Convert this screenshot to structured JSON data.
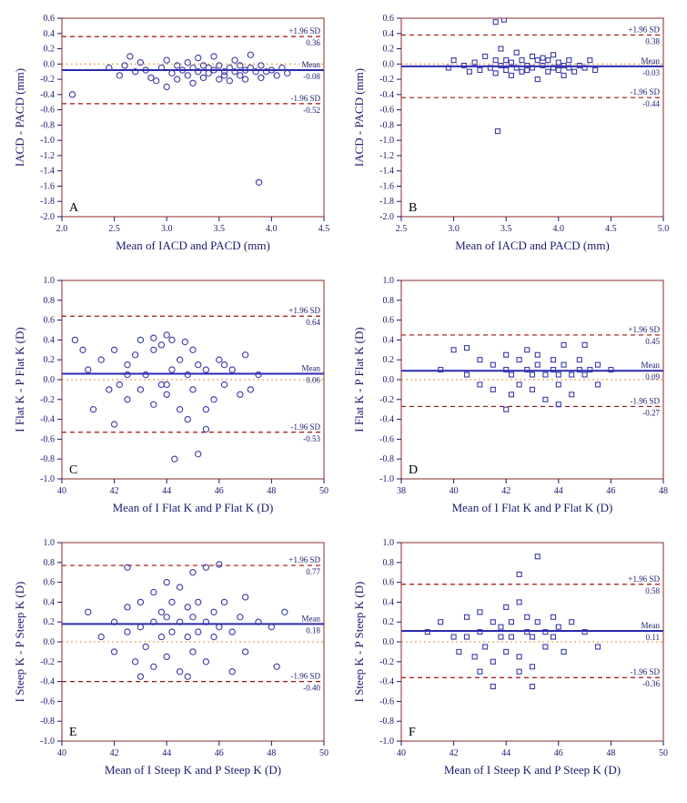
{
  "global": {
    "frame_border_color": "#8b2a2a",
    "frame_border_width": 1,
    "background_color": "#ffffff",
    "tick_color": "#1a1a6e",
    "axis_label_color": "#1a1a6e",
    "annotation_color": "#1a1a6e",
    "panel_label_color": "#000000",
    "panel_label_fontsize": 14,
    "axis_label_fontsize": 13,
    "tick_fontsize": 10,
    "annotation_fontsize": 9,
    "mean_line_color": "#2a2ab0",
    "mean_line_width": 2,
    "limit_line_color": "#a01010",
    "limit_line_width": 1.2,
    "limit_line_dash": "5,4",
    "zero_line_color": "#e09030",
    "zero_line_width": 1,
    "zero_line_dash": "2,3",
    "marker_stroke": "#3a3aa8",
    "marker_fill": "none",
    "marker_stroke_width": 1.1,
    "marker_size": 5
  },
  "panels": [
    {
      "id": "A",
      "type": "scatter",
      "marker": "circle",
      "xlabel": "Mean of IACD and PACD (mm)",
      "ylabel": "IACD - PACD (mm)",
      "xlim": [
        2.0,
        4.5
      ],
      "xtick_step": 0.5,
      "ylim": [
        -2.0,
        0.6
      ],
      "ytick_step": 0.2,
      "mean": -0.08,
      "upper": 0.36,
      "lower": -0.52,
      "data": [
        [
          2.45,
          -0.05
        ],
        [
          2.55,
          -0.15
        ],
        [
          2.6,
          -0.02
        ],
        [
          2.65,
          0.1
        ],
        [
          2.7,
          -0.1
        ],
        [
          2.75,
          0.02
        ],
        [
          2.8,
          -0.08
        ],
        [
          2.85,
          -0.18
        ],
        [
          2.9,
          -0.22
        ],
        [
          2.95,
          -0.05
        ],
        [
          3.0,
          0.05
        ],
        [
          3.0,
          -0.3
        ],
        [
          3.05,
          -0.12
        ],
        [
          3.1,
          -0.02
        ],
        [
          3.1,
          -0.2
        ],
        [
          3.15,
          -0.08
        ],
        [
          3.2,
          0.02
        ],
        [
          3.2,
          -0.15
        ],
        [
          3.25,
          -0.05
        ],
        [
          3.25,
          -0.25
        ],
        [
          3.3,
          -0.1
        ],
        [
          3.3,
          0.08
        ],
        [
          3.35,
          -0.02
        ],
        [
          3.35,
          -0.18
        ],
        [
          3.4,
          -0.05
        ],
        [
          3.4,
          -0.12
        ],
        [
          3.45,
          -0.08
        ],
        [
          3.45,
          0.1
        ],
        [
          3.5,
          -0.2
        ],
        [
          3.5,
          -0.02
        ],
        [
          3.55,
          -0.1
        ],
        [
          3.55,
          -0.15
        ],
        [
          3.6,
          -0.05
        ],
        [
          3.6,
          -0.22
        ],
        [
          3.65,
          -0.1
        ],
        [
          3.65,
          0.05
        ],
        [
          3.7,
          -0.15
        ],
        [
          3.7,
          -0.02
        ],
        [
          3.75,
          -0.08
        ],
        [
          3.75,
          -0.2
        ],
        [
          3.8,
          -0.05
        ],
        [
          3.8,
          0.12
        ],
        [
          3.85,
          -0.1
        ],
        [
          3.9,
          -0.02
        ],
        [
          3.9,
          -0.18
        ],
        [
          3.95,
          -0.1
        ],
        [
          4.0,
          -0.08
        ],
        [
          4.05,
          -0.15
        ],
        [
          4.1,
          -0.05
        ],
        [
          4.15,
          -0.12
        ],
        [
          2.1,
          -0.4
        ],
        [
          3.88,
          -1.55
        ]
      ]
    },
    {
      "id": "B",
      "type": "scatter",
      "marker": "square",
      "xlabel": "Mean of IACD and PACD (mm)",
      "ylabel": "IACD - PACD (mm)",
      "xlim": [
        2.5,
        5.0
      ],
      "xtick_step": 0.5,
      "ylim": [
        -2.0,
        0.6
      ],
      "ytick_step": 0.2,
      "mean": -0.03,
      "upper": 0.38,
      "lower": -0.44,
      "data": [
        [
          2.95,
          -0.05
        ],
        [
          3.0,
          0.05
        ],
        [
          3.1,
          -0.02
        ],
        [
          3.15,
          -0.1
        ],
        [
          3.2,
          0.02
        ],
        [
          3.25,
          -0.08
        ],
        [
          3.3,
          0.1
        ],
        [
          3.35,
          -0.05
        ],
        [
          3.4,
          0.05
        ],
        [
          3.4,
          -0.12
        ],
        [
          3.45,
          -0.02
        ],
        [
          3.45,
          0.2
        ],
        [
          3.5,
          -0.08
        ],
        [
          3.5,
          0.05
        ],
        [
          3.55,
          -0.15
        ],
        [
          3.55,
          0.02
        ],
        [
          3.6,
          -0.05
        ],
        [
          3.6,
          0.15
        ],
        [
          3.65,
          -0.1
        ],
        [
          3.65,
          0.05
        ],
        [
          3.7,
          -0.02
        ],
        [
          3.7,
          -0.08
        ],
        [
          3.75,
          0.1
        ],
        [
          3.75,
          -0.05
        ],
        [
          3.8,
          0.05
        ],
        [
          3.8,
          -0.2
        ],
        [
          3.85,
          -0.02
        ],
        [
          3.85,
          0.08
        ],
        [
          3.9,
          -0.1
        ],
        [
          3.9,
          0.05
        ],
        [
          3.95,
          -0.05
        ],
        [
          3.95,
          0.12
        ],
        [
          4.0,
          -0.08
        ],
        [
          4.0,
          0.02
        ],
        [
          4.05,
          -0.02
        ],
        [
          4.05,
          -0.15
        ],
        [
          4.1,
          0.05
        ],
        [
          4.1,
          -0.05
        ],
        [
          4.15,
          -0.1
        ],
        [
          4.2,
          -0.02
        ],
        [
          4.25,
          -0.05
        ],
        [
          4.3,
          0.05
        ],
        [
          4.35,
          -0.08
        ],
        [
          3.4,
          0.55
        ],
        [
          3.48,
          0.58
        ],
        [
          3.42,
          -0.88
        ]
      ]
    },
    {
      "id": "C",
      "type": "scatter",
      "marker": "circle",
      "xlabel": "Mean of I Flat K and P Flat K (D)",
      "ylabel": "I Flat K - P Flat K (D)",
      "xlim": [
        40,
        50
      ],
      "xtick_step": 2,
      "ylim": [
        -1.0,
        1.0
      ],
      "ytick_step": 0.2,
      "mean": 0.06,
      "upper": 0.64,
      "lower": -0.53,
      "data": [
        [
          40.5,
          0.4
        ],
        [
          40.8,
          0.3
        ],
        [
          41.0,
          0.1
        ],
        [
          41.2,
          -0.3
        ],
        [
          41.5,
          0.2
        ],
        [
          41.8,
          -0.1
        ],
        [
          42.0,
          0.3
        ],
        [
          42.2,
          -0.05
        ],
        [
          42.5,
          0.15
        ],
        [
          42.5,
          -0.2
        ],
        [
          42.8,
          0.25
        ],
        [
          43.0,
          -0.1
        ],
        [
          43.0,
          0.4
        ],
        [
          43.2,
          0.05
        ],
        [
          43.5,
          -0.25
        ],
        [
          43.5,
          0.3
        ],
        [
          43.8,
          -0.05
        ],
        [
          44.0,
          0.45
        ],
        [
          44.0,
          -0.15
        ],
        [
          44.2,
          0.1
        ],
        [
          44.2,
          0.4
        ],
        [
          44.5,
          -0.3
        ],
        [
          44.5,
          0.2
        ],
        [
          44.8,
          0.05
        ],
        [
          44.8,
          -0.4
        ],
        [
          45.0,
          0.3
        ],
        [
          45.0,
          -0.1
        ],
        [
          45.2,
          0.15
        ],
        [
          45.5,
          -0.5
        ],
        [
          45.5,
          0.1
        ],
        [
          45.8,
          -0.2
        ],
        [
          46.0,
          0.2
        ],
        [
          46.2,
          -0.05
        ],
        [
          46.5,
          0.1
        ],
        [
          46.8,
          -0.15
        ],
        [
          47.0,
          0.25
        ],
        [
          47.2,
          -0.1
        ],
        [
          47.5,
          0.05
        ],
        [
          44.3,
          -0.8
        ],
        [
          45.2,
          -0.75
        ],
        [
          43.5,
          0.42
        ],
        [
          44.7,
          0.38
        ],
        [
          42.0,
          -0.45
        ],
        [
          43.8,
          0.35
        ],
        [
          45.5,
          -0.3
        ],
        [
          46.2,
          0.15
        ],
        [
          42.5,
          0.05
        ],
        [
          44.0,
          -0.05
        ]
      ]
    },
    {
      "id": "D",
      "type": "scatter",
      "marker": "square",
      "xlabel": "Mean of I Flat K and P Flat K (D)",
      "ylabel": "I Flat K - P Flat K (D)",
      "xlim": [
        38,
        48
      ],
      "xtick_step": 2,
      "ylim": [
        -1.0,
        1.0
      ],
      "ytick_step": 0.2,
      "mean": 0.09,
      "upper": 0.45,
      "lower": -0.27,
      "data": [
        [
          39.5,
          0.1
        ],
        [
          40.0,
          0.3
        ],
        [
          40.5,
          0.05
        ],
        [
          41.0,
          0.2
        ],
        [
          41.0,
          -0.05
        ],
        [
          41.5,
          0.15
        ],
        [
          41.5,
          -0.1
        ],
        [
          42.0,
          0.1
        ],
        [
          42.0,
          0.25
        ],
        [
          42.2,
          0.05
        ],
        [
          42.2,
          -0.15
        ],
        [
          42.5,
          0.2
        ],
        [
          42.5,
          -0.05
        ],
        [
          42.8,
          0.1
        ],
        [
          42.8,
          0.3
        ],
        [
          43.0,
          0.05
        ],
        [
          43.0,
          -0.1
        ],
        [
          43.2,
          0.15
        ],
        [
          43.2,
          0.25
        ],
        [
          43.5,
          0.05
        ],
        [
          43.5,
          -0.2
        ],
        [
          43.8,
          0.1
        ],
        [
          43.8,
          0.2
        ],
        [
          44.0,
          0.05
        ],
        [
          44.0,
          -0.05
        ],
        [
          44.2,
          0.15
        ],
        [
          44.2,
          0.35
        ],
        [
          44.5,
          0.05
        ],
        [
          44.5,
          -0.15
        ],
        [
          44.8,
          0.1
        ],
        [
          44.8,
          0.2
        ],
        [
          45.0,
          0.05
        ],
        [
          45.0,
          0.35
        ],
        [
          45.2,
          0.1
        ],
        [
          45.5,
          0.15
        ],
        [
          45.5,
          -0.05
        ],
        [
          46.0,
          0.1
        ],
        [
          42.0,
          -0.3
        ],
        [
          44.0,
          -0.25
        ],
        [
          40.5,
          0.32
        ]
      ]
    },
    {
      "id": "E",
      "type": "scatter",
      "marker": "circle",
      "xlabel": "Mean of I Steep K and P Steep K (D)",
      "ylabel": "I Steep K - P Steep K (D)",
      "xlim": [
        40,
        50
      ],
      "xtick_step": 2,
      "ylim": [
        -1.0,
        1.0
      ],
      "ytick_step": 0.2,
      "mean": 0.18,
      "upper": 0.77,
      "lower": -0.4,
      "data": [
        [
          41.0,
          0.3
        ],
        [
          41.5,
          0.05
        ],
        [
          42.0,
          0.2
        ],
        [
          42.0,
          -0.1
        ],
        [
          42.5,
          0.35
        ],
        [
          42.5,
          0.1
        ],
        [
          42.8,
          -0.2
        ],
        [
          43.0,
          0.4
        ],
        [
          43.0,
          0.15
        ],
        [
          43.2,
          -0.05
        ],
        [
          43.5,
          0.5
        ],
        [
          43.5,
          0.2
        ],
        [
          43.5,
          -0.25
        ],
        [
          43.8,
          0.3
        ],
        [
          43.8,
          0.05
        ],
        [
          44.0,
          0.6
        ],
        [
          44.0,
          0.25
        ],
        [
          44.0,
          -0.15
        ],
        [
          44.2,
          0.4
        ],
        [
          44.2,
          0.1
        ],
        [
          44.5,
          0.55
        ],
        [
          44.5,
          0.2
        ],
        [
          44.5,
          -0.3
        ],
        [
          44.8,
          0.35
        ],
        [
          44.8,
          0.05
        ],
        [
          45.0,
          0.7
        ],
        [
          45.0,
          0.25
        ],
        [
          45.0,
          -0.1
        ],
        [
          45.2,
          0.4
        ],
        [
          45.2,
          0.1
        ],
        [
          45.5,
          0.75
        ],
        [
          45.5,
          0.2
        ],
        [
          45.5,
          -0.2
        ],
        [
          45.8,
          0.3
        ],
        [
          45.8,
          0.05
        ],
        [
          46.0,
          0.78
        ],
        [
          46.0,
          0.15
        ],
        [
          46.2,
          0.4
        ],
        [
          46.5,
          0.1
        ],
        [
          46.5,
          -0.3
        ],
        [
          46.8,
          0.25
        ],
        [
          47.0,
          0.45
        ],
        [
          47.0,
          -0.1
        ],
        [
          47.5,
          0.2
        ],
        [
          48.0,
          0.15
        ],
        [
          48.2,
          -0.25
        ],
        [
          48.5,
          0.3
        ],
        [
          42.5,
          0.75
        ],
        [
          43.0,
          -0.35
        ],
        [
          44.8,
          -0.35
        ]
      ]
    },
    {
      "id": "F",
      "type": "scatter",
      "marker": "square",
      "xlabel": "Mean of I Steep K and P Steep K (D)",
      "ylabel": "I Steep K - P Steep K (D)",
      "xlim": [
        40,
        50
      ],
      "xtick_step": 2,
      "ylim": [
        -1.0,
        1.0
      ],
      "ytick_step": 0.2,
      "mean": 0.11,
      "upper": 0.58,
      "lower": -0.36,
      "data": [
        [
          41.0,
          0.1
        ],
        [
          41.5,
          0.2
        ],
        [
          42.0,
          0.05
        ],
        [
          42.2,
          -0.1
        ],
        [
          42.5,
          0.25
        ],
        [
          42.5,
          0.05
        ],
        [
          42.8,
          -0.15
        ],
        [
          43.0,
          0.3
        ],
        [
          43.0,
          0.1
        ],
        [
          43.2,
          -0.05
        ],
        [
          43.5,
          0.2
        ],
        [
          43.5,
          -0.2
        ],
        [
          43.8,
          0.15
        ],
        [
          43.8,
          0.05
        ],
        [
          44.0,
          0.35
        ],
        [
          44.0,
          -0.1
        ],
        [
          44.2,
          0.2
        ],
        [
          44.2,
          0.05
        ],
        [
          44.5,
          0.4
        ],
        [
          44.5,
          -0.15
        ],
        [
          44.5,
          0.68
        ],
        [
          44.8,
          0.1
        ],
        [
          44.8,
          0.25
        ],
        [
          45.0,
          0.05
        ],
        [
          45.0,
          -0.25
        ],
        [
          45.2,
          0.2
        ],
        [
          45.2,
          0.86
        ],
        [
          45.5,
          0.1
        ],
        [
          45.5,
          -0.05
        ],
        [
          45.8,
          0.25
        ],
        [
          45.8,
          0.05
        ],
        [
          46.0,
          0.15
        ],
        [
          46.2,
          -0.1
        ],
        [
          46.5,
          0.2
        ],
        [
          47.0,
          0.1
        ],
        [
          47.5,
          -0.05
        ],
        [
          43.0,
          -0.3
        ],
        [
          44.5,
          -0.3
        ],
        [
          45.0,
          -0.45
        ],
        [
          43.5,
          -0.45
        ]
      ]
    }
  ]
}
